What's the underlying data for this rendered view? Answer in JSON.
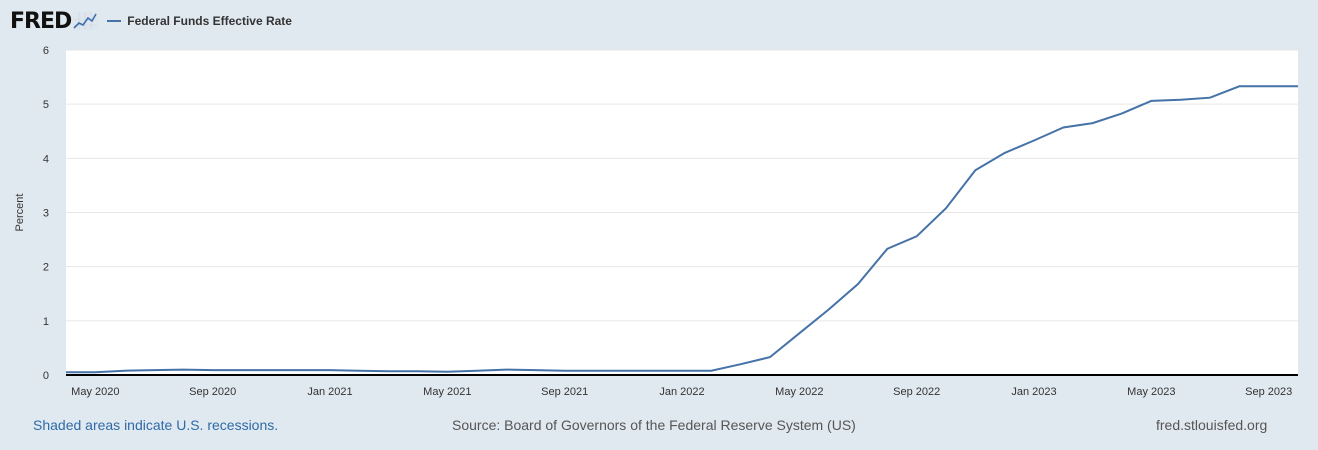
{
  "header": {
    "logo_text": "FRED",
    "logo_icon": "trend-line-icon",
    "legend_label": "Federal Funds Effective Rate",
    "legend_color": "#4572a7"
  },
  "footer": {
    "recession_note": "Shaded areas indicate U.S. recessions.",
    "source": "Source: Board of Governors of the Federal Reserve System (US)",
    "site": "fred.stlouisfed.org"
  },
  "chart_data": {
    "type": "line",
    "ylabel": "Percent",
    "xlabel": "",
    "ylim": [
      0,
      6
    ],
    "yticks": [
      0,
      1,
      2,
      3,
      4,
      5,
      6
    ],
    "xlim": [
      "2020-04",
      "2023-10"
    ],
    "xticks": [
      {
        "date": "2020-05",
        "label": "May 2020"
      },
      {
        "date": "2020-09",
        "label": "Sep 2020"
      },
      {
        "date": "2021-01",
        "label": "Jan 2021"
      },
      {
        "date": "2021-05",
        "label": "May 2021"
      },
      {
        "date": "2021-09",
        "label": "Sep 2021"
      },
      {
        "date": "2022-01",
        "label": "Jan 2022"
      },
      {
        "date": "2022-05",
        "label": "May 2022"
      },
      {
        "date": "2022-09",
        "label": "Sep 2022"
      },
      {
        "date": "2023-01",
        "label": "Jan 2023"
      },
      {
        "date": "2023-05",
        "label": "May 2023"
      },
      {
        "date": "2023-09",
        "label": "Sep 2023"
      }
    ],
    "grid": true,
    "legend": "top-left",
    "series": [
      {
        "name": "Federal Funds Effective Rate",
        "color": "#4572a7",
        "x": [
          "2020-04",
          "2020-05",
          "2020-06",
          "2020-07",
          "2020-08",
          "2020-09",
          "2020-10",
          "2020-11",
          "2020-12",
          "2021-01",
          "2021-02",
          "2021-03",
          "2021-04",
          "2021-05",
          "2021-06",
          "2021-07",
          "2021-08",
          "2021-09",
          "2021-10",
          "2021-11",
          "2021-12",
          "2022-01",
          "2022-02",
          "2022-03",
          "2022-04",
          "2022-05",
          "2022-06",
          "2022-07",
          "2022-08",
          "2022-09",
          "2022-10",
          "2022-11",
          "2022-12",
          "2023-01",
          "2023-02",
          "2023-03",
          "2023-04",
          "2023-05",
          "2023-06",
          "2023-07",
          "2023-08",
          "2023-09",
          "2023-10"
        ],
        "values": [
          0.05,
          0.05,
          0.08,
          0.09,
          0.1,
          0.09,
          0.09,
          0.09,
          0.09,
          0.09,
          0.08,
          0.07,
          0.07,
          0.06,
          0.08,
          0.1,
          0.09,
          0.08,
          0.08,
          0.08,
          0.08,
          0.08,
          0.08,
          0.2,
          0.33,
          0.77,
          1.21,
          1.68,
          2.33,
          2.56,
          3.08,
          3.78,
          4.1,
          4.33,
          4.57,
          4.65,
          4.83,
          5.06,
          5.08,
          5.12,
          5.33,
          5.33,
          5.33
        ]
      }
    ]
  }
}
